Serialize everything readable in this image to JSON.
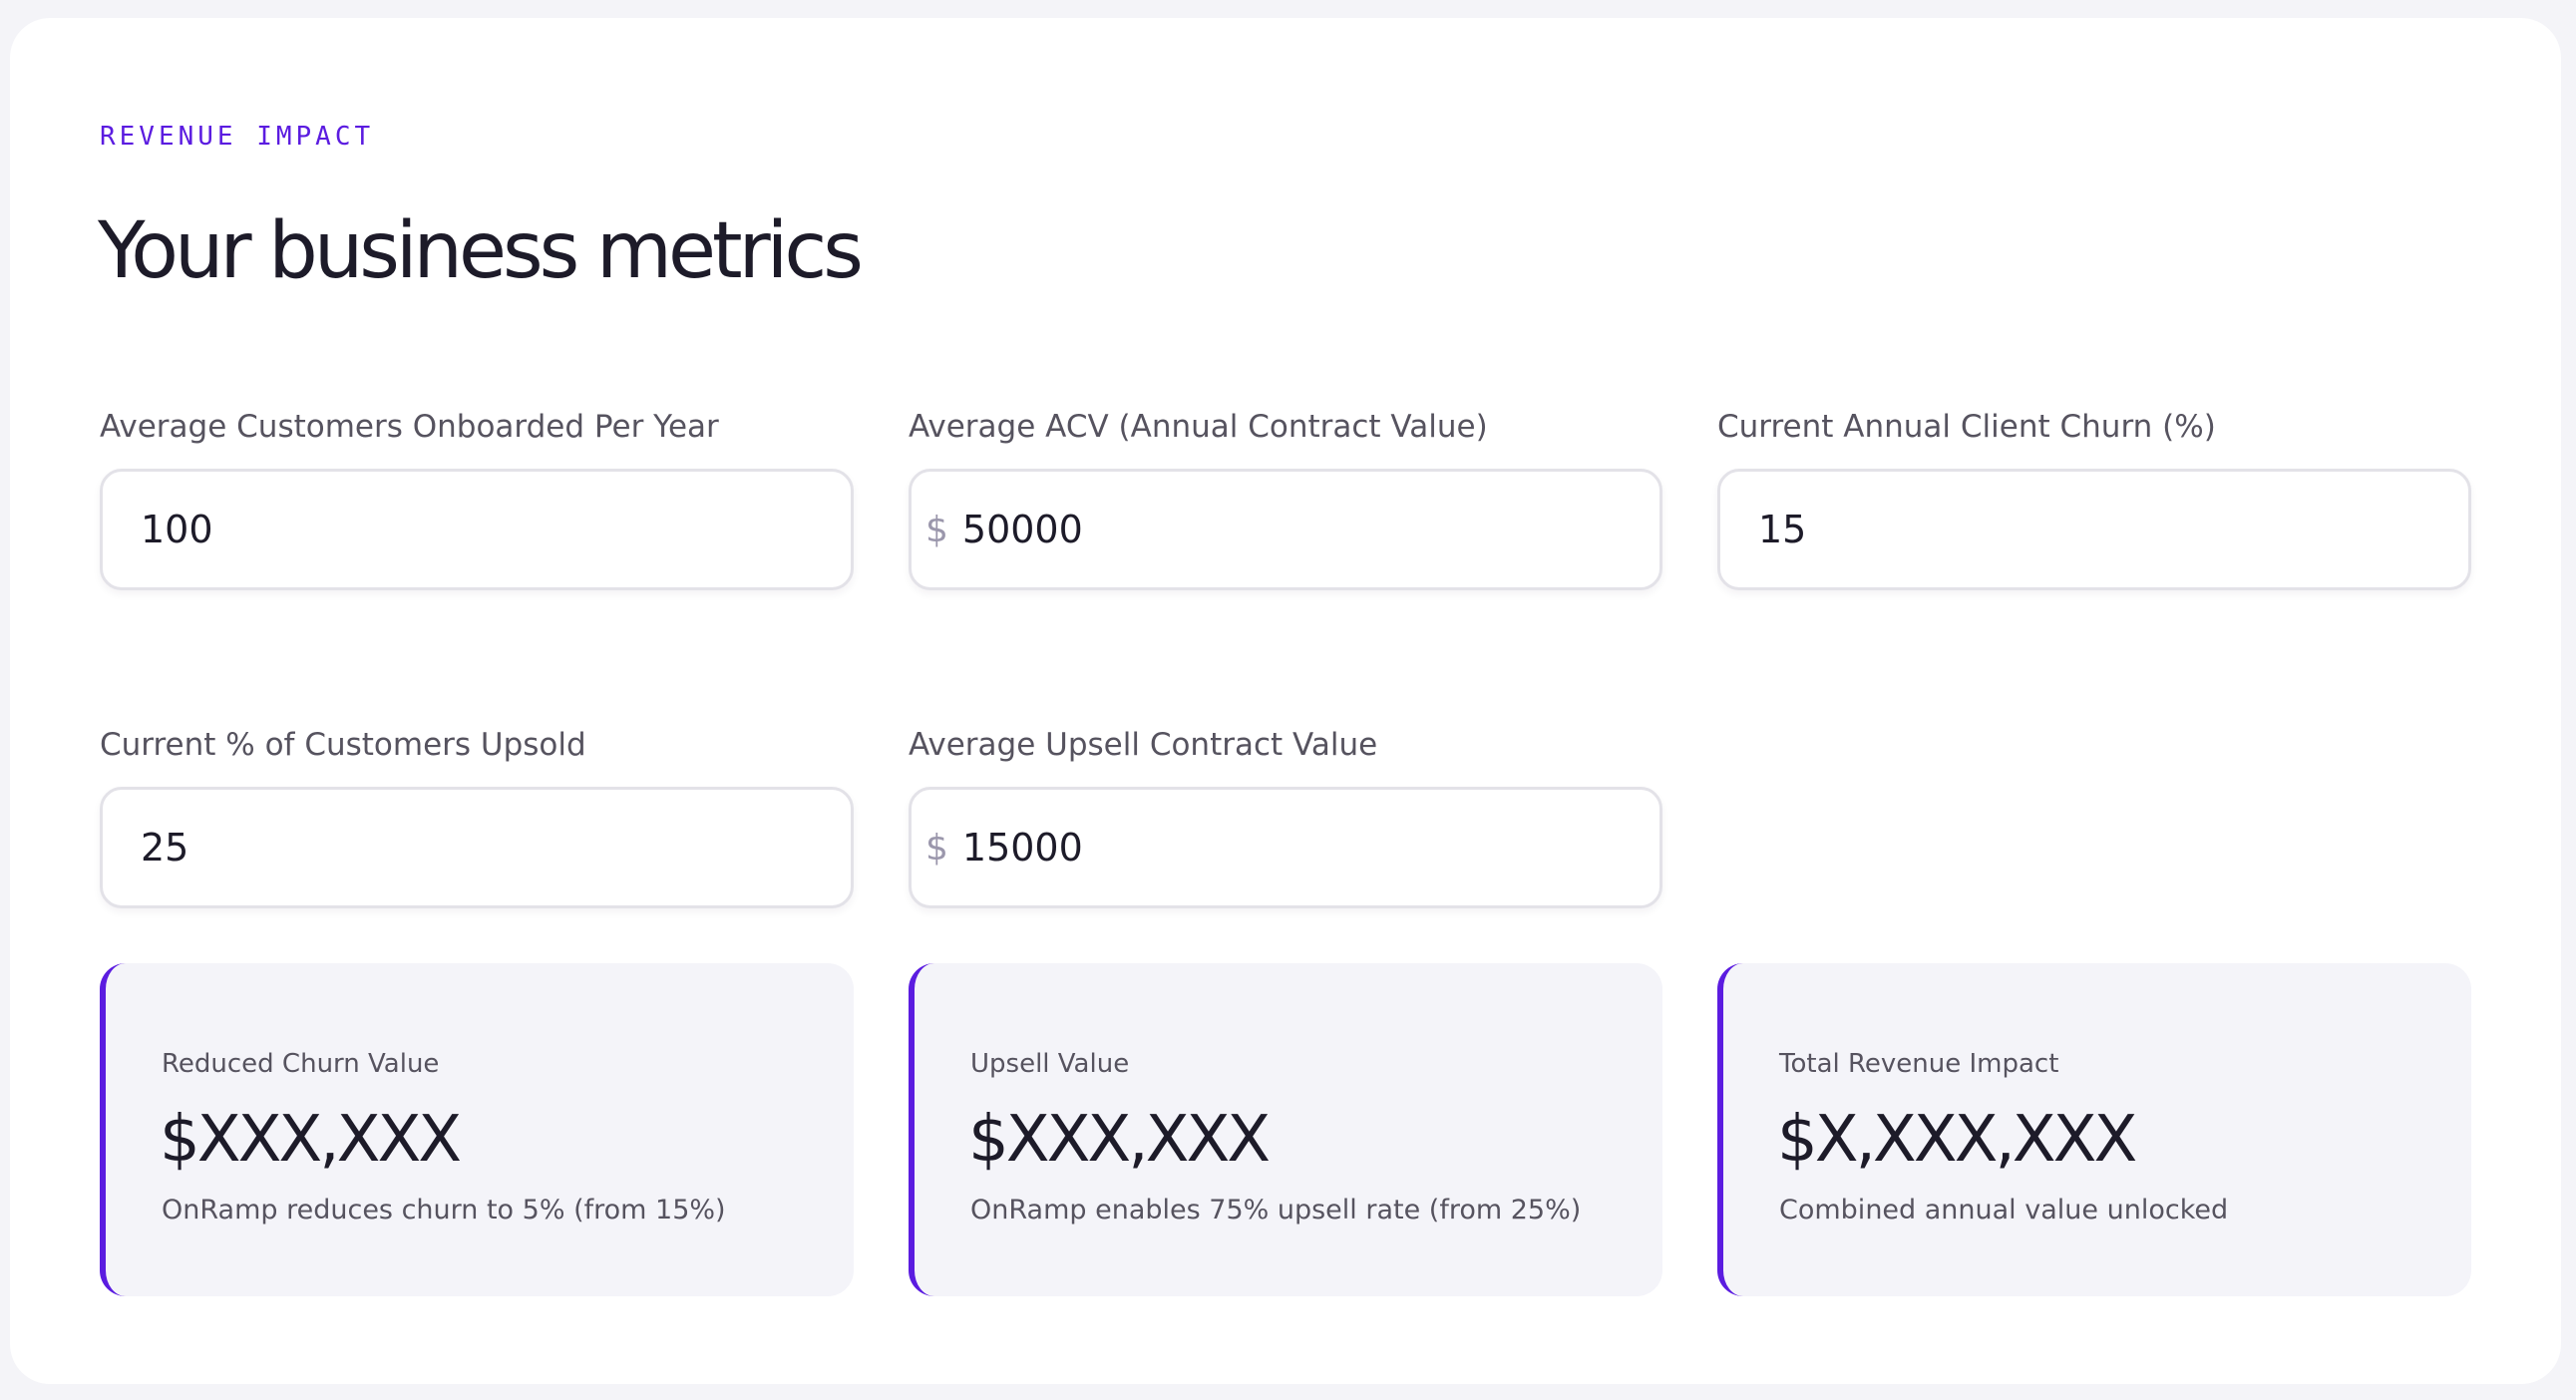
{
  "section": {
    "eyebrow": "REVENUE IMPACT",
    "title": "Your business metrics"
  },
  "fields": [
    {
      "label": "Average Customers Onboarded Per Year",
      "prefix": "",
      "value": "100"
    },
    {
      "label": "Average ACV (Annual Contract Value)",
      "prefix": "$",
      "value": "50000"
    },
    {
      "label": "Current Annual Client Churn (%)",
      "prefix": "",
      "value": "15"
    },
    {
      "label": "Current % of Customers Upsold",
      "prefix": "",
      "value": "25"
    },
    {
      "label": "Average Upsell Contract Value",
      "prefix": "$",
      "value": "15000"
    }
  ],
  "results": [
    {
      "label": "Reduced Churn Value",
      "value": "$XXX,XXX",
      "note": "OnRamp reduces churn to 5% (from 15%)"
    },
    {
      "label": "Upsell Value",
      "value": "$XXX,XXX",
      "note": "OnRamp enables 75% upsell rate (from 25%)"
    },
    {
      "label": "Total Revenue Impact",
      "value": "$X,XXX,XXX",
      "note": "Combined annual value unlocked"
    }
  ],
  "colors": {
    "accent": "#5b1ce0",
    "text": "#1d1b29",
    "muted": "#56535f",
    "result_bg": "#f4f4f9"
  }
}
